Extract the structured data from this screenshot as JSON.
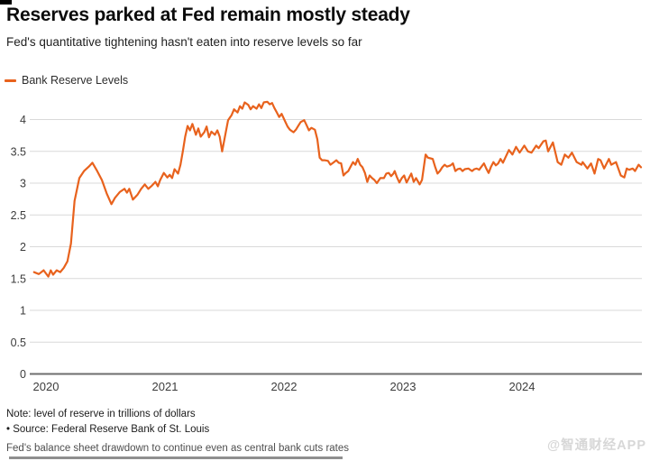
{
  "header": {
    "title": "Reserves parked at Fed remain mostly steady",
    "subtitle": "Fed's quantitative tightening hasn't eaten into reserve levels so far"
  },
  "legend": {
    "label": "Bank Reserve Levels"
  },
  "colors": {
    "line": "#e8621d",
    "grid": "#d9d9d9",
    "zero_axis": "#6e6e6e",
    "axis_text": "#3c3c3c"
  },
  "chart_data": {
    "type": "line",
    "title": "Reserves parked at Fed remain mostly steady",
    "subtitle": "Fed's quantitative tightening hasn't eaten into reserve levels so far",
    "unit": "trillions of dollars",
    "xlabel": "",
    "ylabel": "",
    "x_ticks": [
      2020,
      2021,
      2022,
      2023,
      2024
    ],
    "y_ticks": [
      0,
      0.5,
      1,
      1.5,
      2,
      2.5,
      3,
      3.5,
      4
    ],
    "xlim": [
      2019.9,
      2025.03
    ],
    "ylim": [
      0,
      4.4
    ],
    "grid": "horizontal",
    "legend_position": "top-left",
    "series": [
      {
        "name": "Bank Reserve Levels",
        "color": "#e8621d",
        "points": [
          [
            2019.9,
            1.6
          ],
          [
            2019.94,
            1.57
          ],
          [
            2019.98,
            1.63
          ],
          [
            2020.0,
            1.58
          ],
          [
            2020.02,
            1.53
          ],
          [
            2020.04,
            1.63
          ],
          [
            2020.06,
            1.56
          ],
          [
            2020.09,
            1.63
          ],
          [
            2020.12,
            1.6
          ],
          [
            2020.15,
            1.67
          ],
          [
            2020.18,
            1.77
          ],
          [
            2020.21,
            2.05
          ],
          [
            2020.24,
            2.72
          ],
          [
            2020.28,
            3.08
          ],
          [
            2020.32,
            3.19
          ],
          [
            2020.36,
            3.26
          ],
          [
            2020.39,
            3.32
          ],
          [
            2020.43,
            3.19
          ],
          [
            2020.47,
            3.05
          ],
          [
            2020.51,
            2.84
          ],
          [
            2020.55,
            2.67
          ],
          [
            2020.58,
            2.77
          ],
          [
            2020.62,
            2.86
          ],
          [
            2020.66,
            2.91
          ],
          [
            2020.68,
            2.85
          ],
          [
            2020.7,
            2.91
          ],
          [
            2020.73,
            2.74
          ],
          [
            2020.77,
            2.82
          ],
          [
            2020.8,
            2.91
          ],
          [
            2020.83,
            2.98
          ],
          [
            2020.86,
            2.91
          ],
          [
            2020.89,
            2.96
          ],
          [
            2020.92,
            3.02
          ],
          [
            2020.94,
            2.95
          ],
          [
            2020.96,
            3.05
          ],
          [
            2020.99,
            3.16
          ],
          [
            2021.02,
            3.09
          ],
          [
            2021.04,
            3.13
          ],
          [
            2021.06,
            3.08
          ],
          [
            2021.08,
            3.22
          ],
          [
            2021.11,
            3.15
          ],
          [
            2021.13,
            3.29
          ],
          [
            2021.15,
            3.5
          ],
          [
            2021.17,
            3.73
          ],
          [
            2021.19,
            3.9
          ],
          [
            2021.21,
            3.83
          ],
          [
            2021.23,
            3.93
          ],
          [
            2021.26,
            3.76
          ],
          [
            2021.28,
            3.86
          ],
          [
            2021.3,
            3.73
          ],
          [
            2021.33,
            3.8
          ],
          [
            2021.35,
            3.89
          ],
          [
            2021.37,
            3.72
          ],
          [
            2021.39,
            3.81
          ],
          [
            2021.42,
            3.76
          ],
          [
            2021.44,
            3.83
          ],
          [
            2021.46,
            3.73
          ],
          [
            2021.48,
            3.5
          ],
          [
            2021.51,
            3.79
          ],
          [
            2021.53,
            3.99
          ],
          [
            2021.56,
            4.07
          ],
          [
            2021.58,
            4.16
          ],
          [
            2021.61,
            4.11
          ],
          [
            2021.63,
            4.21
          ],
          [
            2021.65,
            4.17
          ],
          [
            2021.67,
            4.27
          ],
          [
            2021.7,
            4.23
          ],
          [
            2021.72,
            4.16
          ],
          [
            2021.74,
            4.21
          ],
          [
            2021.77,
            4.17
          ],
          [
            2021.79,
            4.24
          ],
          [
            2021.81,
            4.18
          ],
          [
            2021.83,
            4.27
          ],
          [
            2021.86,
            4.28
          ],
          [
            2021.88,
            4.24
          ],
          [
            2021.9,
            4.26
          ],
          [
            2021.92,
            4.18
          ],
          [
            2021.94,
            4.11
          ],
          [
            2021.96,
            4.04
          ],
          [
            2021.98,
            4.09
          ],
          [
            2022.01,
            3.97
          ],
          [
            2022.03,
            3.89
          ],
          [
            2022.05,
            3.84
          ],
          [
            2022.08,
            3.8
          ],
          [
            2022.1,
            3.84
          ],
          [
            2022.12,
            3.9
          ],
          [
            2022.14,
            3.96
          ],
          [
            2022.17,
            3.99
          ],
          [
            2022.19,
            3.91
          ],
          [
            2022.21,
            3.83
          ],
          [
            2022.23,
            3.87
          ],
          [
            2022.26,
            3.84
          ],
          [
            2022.28,
            3.69
          ],
          [
            2022.3,
            3.4
          ],
          [
            2022.32,
            3.36
          ],
          [
            2022.34,
            3.36
          ],
          [
            2022.37,
            3.35
          ],
          [
            2022.39,
            3.29
          ],
          [
            2022.42,
            3.33
          ],
          [
            2022.44,
            3.36
          ],
          [
            2022.46,
            3.32
          ],
          [
            2022.48,
            3.31
          ],
          [
            2022.5,
            3.12
          ],
          [
            2022.52,
            3.16
          ],
          [
            2022.54,
            3.19
          ],
          [
            2022.56,
            3.26
          ],
          [
            2022.58,
            3.33
          ],
          [
            2022.6,
            3.29
          ],
          [
            2022.62,
            3.38
          ],
          [
            2022.64,
            3.29
          ],
          [
            2022.66,
            3.25
          ],
          [
            2022.68,
            3.16
          ],
          [
            2022.7,
            3.02
          ],
          [
            2022.72,
            3.12
          ],
          [
            2022.74,
            3.08
          ],
          [
            2022.76,
            3.05
          ],
          [
            2022.78,
            3.0
          ],
          [
            2022.81,
            3.08
          ],
          [
            2022.84,
            3.08
          ],
          [
            2022.86,
            3.15
          ],
          [
            2022.88,
            3.16
          ],
          [
            2022.9,
            3.11
          ],
          [
            2022.92,
            3.15
          ],
          [
            2022.93,
            3.19
          ],
          [
            2022.95,
            3.09
          ],
          [
            2022.97,
            3.01
          ],
          [
            2022.99,
            3.08
          ],
          [
            2023.01,
            3.12
          ],
          [
            2023.03,
            3.01
          ],
          [
            2023.05,
            3.08
          ],
          [
            2023.07,
            3.15
          ],
          [
            2023.09,
            3.02
          ],
          [
            2023.11,
            3.08
          ],
          [
            2023.14,
            2.98
          ],
          [
            2023.16,
            3.05
          ],
          [
            2023.19,
            3.45
          ],
          [
            2023.21,
            3.4
          ],
          [
            2023.23,
            3.39
          ],
          [
            2023.25,
            3.38
          ],
          [
            2023.27,
            3.26
          ],
          [
            2023.29,
            3.15
          ],
          [
            2023.31,
            3.19
          ],
          [
            2023.33,
            3.25
          ],
          [
            2023.35,
            3.29
          ],
          [
            2023.37,
            3.26
          ],
          [
            2023.4,
            3.28
          ],
          [
            2023.42,
            3.31
          ],
          [
            2023.44,
            3.19
          ],
          [
            2023.46,
            3.22
          ],
          [
            2023.48,
            3.23
          ],
          [
            2023.5,
            3.19
          ],
          [
            2023.52,
            3.22
          ],
          [
            2023.55,
            3.23
          ],
          [
            2023.58,
            3.19
          ],
          [
            2023.6,
            3.22
          ],
          [
            2023.62,
            3.23
          ],
          [
            2023.64,
            3.21
          ],
          [
            2023.66,
            3.26
          ],
          [
            2023.68,
            3.31
          ],
          [
            2023.7,
            3.23
          ],
          [
            2023.72,
            3.16
          ],
          [
            2023.74,
            3.26
          ],
          [
            2023.76,
            3.33
          ],
          [
            2023.78,
            3.28
          ],
          [
            2023.8,
            3.31
          ],
          [
            2023.82,
            3.38
          ],
          [
            2023.84,
            3.32
          ],
          [
            2023.86,
            3.4
          ],
          [
            2023.89,
            3.52
          ],
          [
            2023.92,
            3.45
          ],
          [
            2023.95,
            3.57
          ],
          [
            2023.98,
            3.48
          ],
          [
            2024.02,
            3.59
          ],
          [
            2024.05,
            3.5
          ],
          [
            2024.08,
            3.48
          ],
          [
            2024.12,
            3.59
          ],
          [
            2024.14,
            3.55
          ],
          [
            2024.18,
            3.66
          ],
          [
            2024.2,
            3.67
          ],
          [
            2024.22,
            3.5
          ],
          [
            2024.26,
            3.64
          ],
          [
            2024.3,
            3.33
          ],
          [
            2024.33,
            3.29
          ],
          [
            2024.36,
            3.45
          ],
          [
            2024.39,
            3.4
          ],
          [
            2024.42,
            3.48
          ],
          [
            2024.46,
            3.33
          ],
          [
            2024.5,
            3.29
          ],
          [
            2024.51,
            3.33
          ],
          [
            2024.55,
            3.23
          ],
          [
            2024.58,
            3.31
          ],
          [
            2024.61,
            3.15
          ],
          [
            2024.64,
            3.38
          ],
          [
            2024.66,
            3.36
          ],
          [
            2024.69,
            3.23
          ],
          [
            2024.73,
            3.38
          ],
          [
            2024.75,
            3.29
          ],
          [
            2024.79,
            3.33
          ],
          [
            2024.83,
            3.12
          ],
          [
            2024.86,
            3.09
          ],
          [
            2024.88,
            3.23
          ],
          [
            2024.9,
            3.21
          ],
          [
            2024.93,
            3.23
          ],
          [
            2024.95,
            3.19
          ],
          [
            2024.98,
            3.29
          ],
          [
            2025.0,
            3.25
          ]
        ]
      }
    ]
  },
  "notes": {
    "note": "Note: level of reserve in trillions of dollars",
    "source": "• Source: Federal Reserve Bank of St. Louis",
    "caption": "Fed's balance sheet drawdown to continue even as central bank cuts rates"
  },
  "watermark": "@智通财经APP"
}
